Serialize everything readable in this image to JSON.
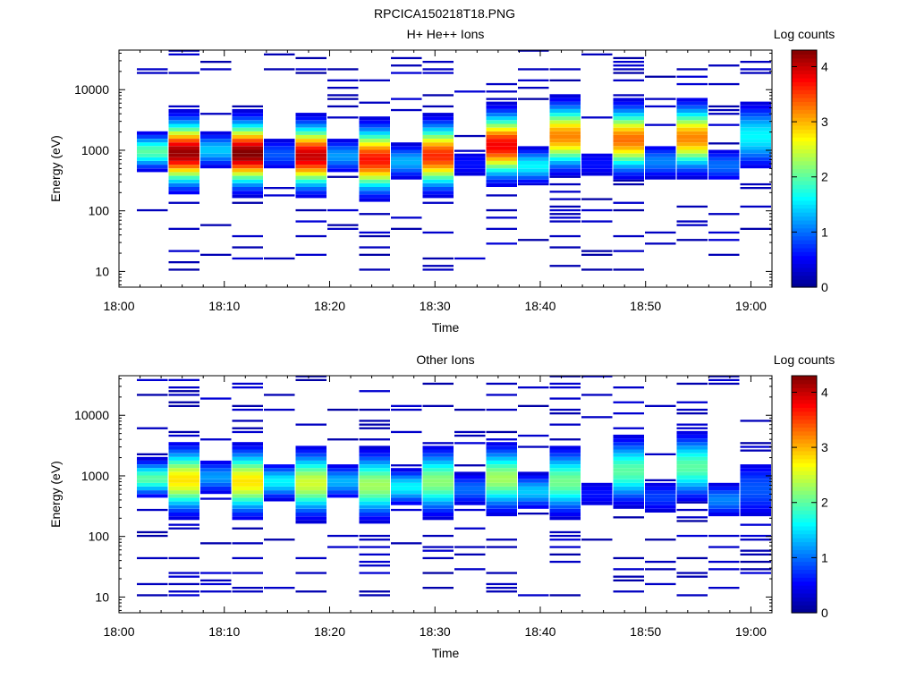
{
  "figure_title": "RPCICA150218T18.PNG",
  "colors": {
    "background": "#ffffff",
    "axis": "#000000",
    "colormap": [
      "#00008f",
      "#0000ff",
      "#0080ff",
      "#00ffff",
      "#80ff80",
      "#ffff00",
      "#ff8000",
      "#ff0000",
      "#800000"
    ]
  },
  "chart_data": [
    {
      "type": "heatmap",
      "title": "H+ He++ Ions",
      "xlabel": "Time",
      "ylabel": "Energy (eV)",
      "y_scale": "log",
      "xlim": [
        "18:00",
        "19:02"
      ],
      "ylim": [
        5.5,
        45000
      ],
      "x_ticks": [
        "18:00",
        "18:10",
        "18:20",
        "18:30",
        "18:40",
        "18:50",
        "19:00"
      ],
      "y_ticks": [
        "10",
        "100",
        "1000",
        "10000"
      ],
      "colorbar": {
        "label": "Log counts",
        "range": [
          0,
          4.3
        ],
        "ticks": [
          "0",
          "1",
          "2",
          "3",
          "4"
        ]
      },
      "profile": {
        "peak_energy_ev": [
          950,
          900,
          1000,
          880,
          850,
          800,
          800,
          700,
          650,
          800,
          600,
          1200,
          550,
          1700,
          600,
          1500,
          650,
          1600,
          560,
          1700
        ],
        "peak_log_counts": [
          2.0,
          4.2,
          1.4,
          4.3,
          0.9,
          4.0,
          1.2,
          3.7,
          1.3,
          3.6,
          0.6,
          3.8,
          1.6,
          3.2,
          0.6,
          3.3,
          1.1,
          3.2,
          1.0,
          1.6
        ]
      }
    },
    {
      "type": "heatmap",
      "title": "Other Ions",
      "xlabel": "Time",
      "ylabel": "Energy (eV)",
      "y_scale": "log",
      "xlim": [
        "18:00",
        "19:02"
      ],
      "ylim": [
        5.5,
        45000
      ],
      "x_ticks": [
        "18:00",
        "18:10",
        "18:20",
        "18:30",
        "18:40",
        "18:50",
        "19:00"
      ],
      "y_ticks": [
        "10",
        "100",
        "1000",
        "10000"
      ],
      "colorbar": {
        "label": "Log counts",
        "range": [
          0,
          4.3
        ],
        "ticks": [
          "0",
          "1",
          "2",
          "3",
          "4"
        ]
      },
      "profile": {
        "peak_energy_ev": [
          900,
          850,
          950,
          800,
          800,
          750,
          800,
          700,
          650,
          800,
          600,
          900,
          550,
          800,
          500,
          1200,
          450,
          1400,
          400,
          600
        ],
        "peak_log_counts": [
          2.0,
          2.8,
          1.2,
          2.8,
          1.6,
          2.5,
          1.3,
          2.3,
          1.6,
          2.2,
          1.0,
          2.3,
          1.4,
          2.1,
          0.6,
          2.0,
          0.8,
          2.0,
          1.1,
          0.9
        ]
      }
    }
  ]
}
